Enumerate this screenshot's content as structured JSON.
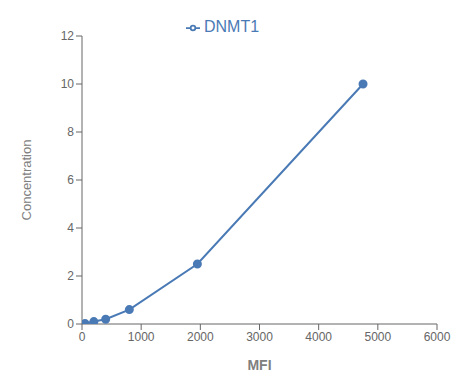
{
  "chart_data": {
    "type": "line",
    "x": [
      50,
      200,
      400,
      800,
      1950,
      4750
    ],
    "series": [
      {
        "name": "DNMT1",
        "color": "#4a7ab5",
        "values": [
          0.02,
          0.1,
          0.2,
          0.6,
          2.5,
          10.0
        ],
        "marker": "circle"
      }
    ],
    "xlabel": "MFI",
    "ylabel": "Concentration",
    "xlim": [
      0,
      6000
    ],
    "ylim": [
      0,
      12
    ],
    "xticks": [
      0,
      1000,
      2000,
      3000,
      4000,
      5000,
      6000
    ],
    "yticks": [
      0,
      2,
      4,
      6,
      8,
      10,
      12
    ],
    "grid": false,
    "legend": "top"
  }
}
